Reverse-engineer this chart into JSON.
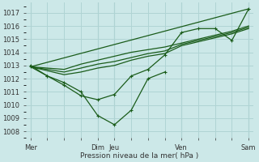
{
  "xlabel": "Pression niveau de la mer( hPa )",
  "bg_color": "#cce8e8",
  "grid_color": "#b0d4d4",
  "line_color": "#1a5c1a",
  "ylim": [
    1007.5,
    1017.8
  ],
  "yticks": [
    1008,
    1009,
    1010,
    1011,
    1012,
    1013,
    1014,
    1015,
    1016,
    1017
  ],
  "xlim": [
    -0.3,
    13.3
  ],
  "xtick_labels": [
    "Mer",
    "",
    "",
    "",
    "Dim",
    "Jeu",
    "",
    "",
    "",
    "Ven",
    "",
    "",
    "",
    "Sam"
  ],
  "xtick_positions": [
    0,
    1,
    2,
    3,
    4,
    5,
    6,
    7,
    8,
    9,
    10,
    11,
    12,
    13
  ],
  "vline_positions": [
    0,
    4,
    5,
    9,
    13
  ],
  "trend_line": {
    "x": [
      0,
      13
    ],
    "y": [
      1012.9,
      1017.3
    ]
  },
  "band_line1": {
    "x": [
      0,
      1,
      2,
      3,
      4,
      5,
      6,
      7,
      8,
      9,
      10,
      11,
      12,
      13
    ],
    "y": [
      1012.9,
      1012.8,
      1012.7,
      1013.1,
      1013.4,
      1013.7,
      1014.0,
      1014.2,
      1014.4,
      1014.7,
      1015.0,
      1015.3,
      1015.6,
      1016.0
    ]
  },
  "band_line2": {
    "x": [
      0,
      1,
      2,
      3,
      4,
      5,
      6,
      7,
      8,
      9,
      10,
      11,
      12,
      13
    ],
    "y": [
      1012.9,
      1012.7,
      1012.5,
      1012.8,
      1013.1,
      1013.3,
      1013.6,
      1013.9,
      1014.1,
      1014.6,
      1014.9,
      1015.2,
      1015.5,
      1015.9
    ]
  },
  "band_line3": {
    "x": [
      0,
      2,
      3,
      4,
      5,
      6,
      7,
      8,
      9,
      10,
      11,
      12,
      13
    ],
    "y": [
      1012.9,
      1012.3,
      1012.5,
      1012.8,
      1013.0,
      1013.4,
      1013.7,
      1013.9,
      1014.5,
      1014.8,
      1015.1,
      1015.4,
      1015.8
    ]
  },
  "main_series": {
    "x": [
      0,
      1,
      2,
      3,
      4,
      5,
      6,
      7,
      8,
      9,
      10,
      11,
      12,
      13
    ],
    "y": [
      1013.0,
      1012.2,
      1011.5,
      1010.7,
      1010.4,
      1010.8,
      1012.2,
      1012.7,
      1013.8,
      1015.5,
      1015.8,
      1015.8,
      1014.9,
      1017.3
    ]
  },
  "lower_series": {
    "x": [
      0,
      1,
      2,
      3,
      4,
      5,
      6,
      7,
      8
    ],
    "y": [
      1012.9,
      1012.2,
      1011.7,
      1011.0,
      1009.2,
      1008.5,
      1009.6,
      1012.0,
      1012.5
    ]
  }
}
